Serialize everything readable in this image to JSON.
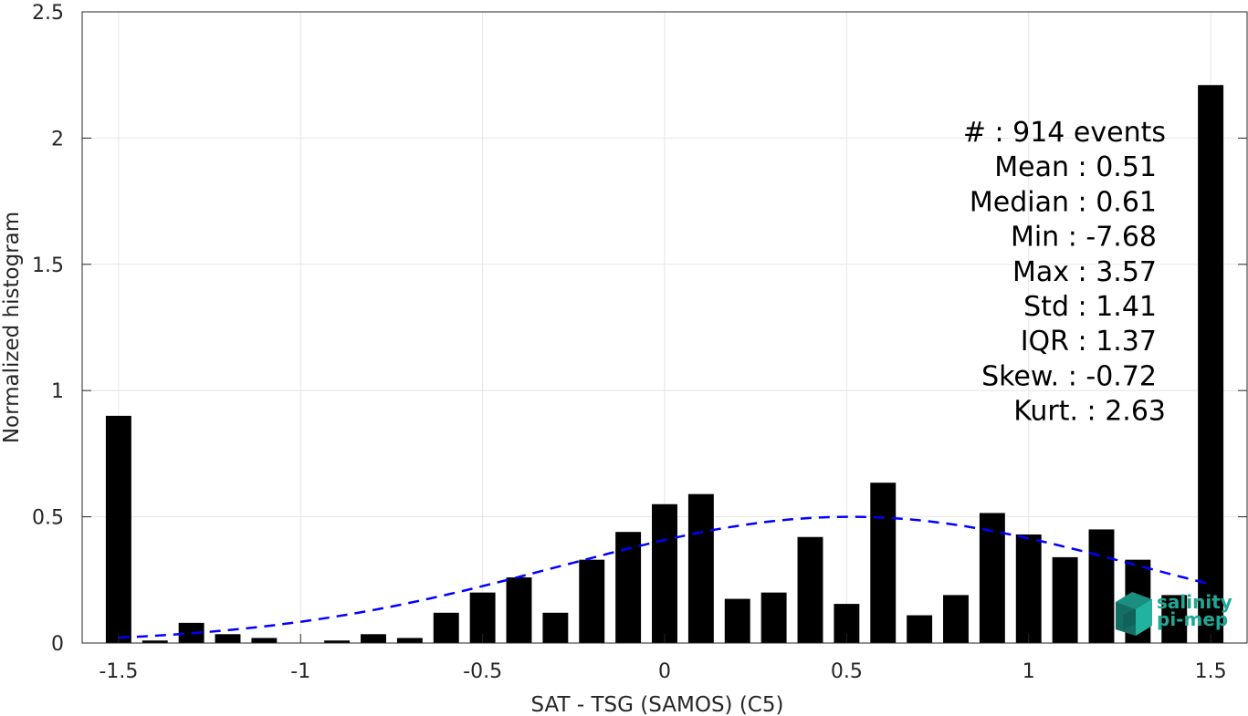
{
  "chart_data": {
    "type": "bar",
    "xlabel": "SAT - TSG (SAMOS) (C5)",
    "ylabel": "Normalized histogram",
    "xlim": [
      -1.6,
      1.6
    ],
    "ylim": [
      0,
      2.5
    ],
    "xticks": [
      -1.5,
      -1,
      -0.5,
      0,
      0.5,
      1,
      1.5
    ],
    "xtick_labels": [
      "-1.5",
      "-1",
      "-0.5",
      "0",
      "0.5",
      "1",
      "1.5"
    ],
    "yticks": [
      0,
      0.5,
      1,
      1.5,
      2,
      2.5
    ],
    "ytick_labels": [
      "0",
      "0.5",
      "1",
      "1.5",
      "2",
      "2.5"
    ],
    "grid": true,
    "bars": {
      "x": [
        -1.5,
        -1.4,
        -1.3,
        -1.2,
        -1.1,
        -1.0,
        -0.9,
        -0.8,
        -0.7,
        -0.6,
        -0.5,
        -0.4,
        -0.3,
        -0.2,
        -0.1,
        0.0,
        0.1,
        0.2,
        0.3,
        0.4,
        0.5,
        0.6,
        0.7,
        0.8,
        0.9,
        1.0,
        1.1,
        1.2,
        1.3,
        1.4,
        1.5
      ],
      "values": [
        0.9,
        0.01,
        0.08,
        0.035,
        0.02,
        0.0,
        0.01,
        0.035,
        0.02,
        0.12,
        0.2,
        0.26,
        0.12,
        0.33,
        0.44,
        0.55,
        0.59,
        0.175,
        0.2,
        0.42,
        0.155,
        0.635,
        0.11,
        0.19,
        0.515,
        0.43,
        0.34,
        0.45,
        0.33,
        0.19,
        2.21
      ],
      "width": 0.07,
      "color": "#000000"
    },
    "fit_curve": {
      "style": "dashed",
      "color": "#0000ff",
      "mean": 0.51,
      "std": 0.8,
      "peak": 0.5,
      "x_range": [
        -1.5,
        1.5
      ]
    },
    "annotations": [
      "#  : 914 events",
      "Mean : 0.51",
      "Median : 0.61",
      "Min : -7.68",
      "Max : 3.57",
      "Std : 1.41",
      "IQR : 1.37",
      "Skew. : -0.72",
      "Kurt. : 2.63"
    ]
  },
  "logo": {
    "line1": "salinity",
    "line2": "pi-mep",
    "color": "#1fa896"
  }
}
